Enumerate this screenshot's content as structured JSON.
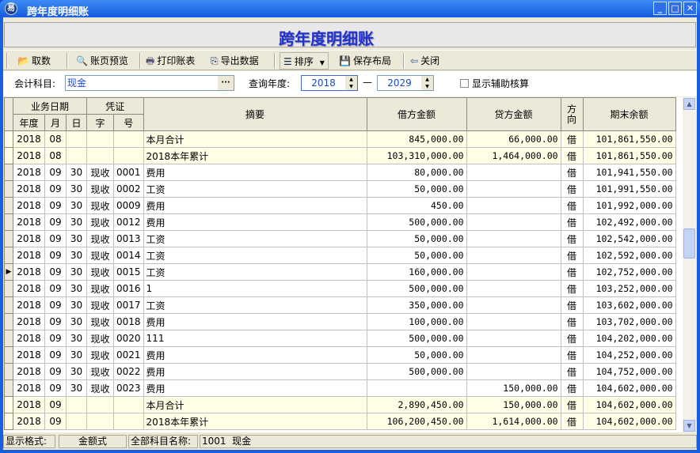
{
  "window": {
    "title": "跨年度明细账",
    "app_icon": "易",
    "minimize": "_",
    "maximize": "□",
    "close": "✕"
  },
  "banner": {
    "title": "跨年度明细账"
  },
  "toolbar": {
    "fetch": "取数",
    "preview": "账页预览",
    "print": "打印账表",
    "export": "导出数据",
    "sort": "排序",
    "save_layout": "保存布局",
    "close": "关闭"
  },
  "filter": {
    "account_label": "会计科目:",
    "account_value": "现金",
    "browse": "···",
    "year_label": "查询年度:",
    "year_from": "2018",
    "dash": "—",
    "year_to": "2029",
    "aux_label": "显示辅助核算",
    "aux_checked": false
  },
  "table": {
    "headers": {
      "date_group": "业务日期",
      "voucher_group": "凭证",
      "year": "年度",
      "month": "月",
      "day": "日",
      "type": "字",
      "no": "号",
      "summary": "摘要",
      "debit": "借方金额",
      "credit": "贷方金额",
      "direction": "方向",
      "balance": "期末余额"
    },
    "current_row": 8,
    "rows": [
      [
        "2018",
        "08",
        "",
        "",
        "",
        "本月合计",
        "845,000.00",
        "66,000.00",
        "借",
        "101,861,550.00",
        "sum"
      ],
      [
        "2018",
        "08",
        "",
        "",
        "",
        "2018本年累计",
        "103,310,000.00",
        "1,464,000.00",
        "借",
        "101,861,550.00",
        "sum"
      ],
      [
        "2018",
        "09",
        "30",
        "现收",
        "0001",
        "费用",
        "80,000.00",
        "",
        "借",
        "101,941,550.00",
        ""
      ],
      [
        "2018",
        "09",
        "30",
        "现收",
        "0002",
        "工资",
        "50,000.00",
        "",
        "借",
        "101,991,550.00",
        ""
      ],
      [
        "2018",
        "09",
        "30",
        "现收",
        "0009",
        "费用",
        "450.00",
        "",
        "借",
        "101,992,000.00",
        ""
      ],
      [
        "2018",
        "09",
        "30",
        "现收",
        "0012",
        "费用",
        "500,000.00",
        "",
        "借",
        "102,492,000.00",
        ""
      ],
      [
        "2018",
        "09",
        "30",
        "现收",
        "0013",
        "工资",
        "50,000.00",
        "",
        "借",
        "102,542,000.00",
        ""
      ],
      [
        "2018",
        "09",
        "30",
        "现收",
        "0014",
        "工资",
        "50,000.00",
        "",
        "借",
        "102,592,000.00",
        ""
      ],
      [
        "2018",
        "09",
        "30",
        "现收",
        "0015",
        "工资",
        "160,000.00",
        "",
        "借",
        "102,752,000.00",
        ""
      ],
      [
        "2018",
        "09",
        "30",
        "现收",
        "0016",
        "1",
        "500,000.00",
        "",
        "借",
        "103,252,000.00",
        ""
      ],
      [
        "2018",
        "09",
        "30",
        "现收",
        "0017",
        "工资",
        "350,000.00",
        "",
        "借",
        "103,602,000.00",
        ""
      ],
      [
        "2018",
        "09",
        "30",
        "现收",
        "0018",
        "费用",
        "100,000.00",
        "",
        "借",
        "103,702,000.00",
        ""
      ],
      [
        "2018",
        "09",
        "30",
        "现收",
        "0020",
        "111",
        "500,000.00",
        "",
        "借",
        "104,202,000.00",
        ""
      ],
      [
        "2018",
        "09",
        "30",
        "现收",
        "0021",
        "费用",
        "50,000.00",
        "",
        "借",
        "104,252,000.00",
        ""
      ],
      [
        "2018",
        "09",
        "30",
        "现收",
        "0022",
        "费用",
        "500,000.00",
        "",
        "借",
        "104,752,000.00",
        ""
      ],
      [
        "2018",
        "09",
        "30",
        "现收",
        "0023",
        "费用",
        "",
        "150,000.00",
        "借",
        "104,602,000.00",
        ""
      ],
      [
        "2018",
        "09",
        "",
        "",
        "",
        "本月合计",
        "2,890,450.00",
        "150,000.00",
        "借",
        "104,602,000.00",
        "sum"
      ],
      [
        "2018",
        "09",
        "",
        "",
        "",
        "2018本年累计",
        "106,200,450.00",
        "1,614,000.00",
        "借",
        "104,602,000.00",
        "sum"
      ]
    ]
  },
  "status": {
    "format_label": "显示格式:",
    "format_value": "金额式",
    "account_name_label": "全部科目名称:",
    "account_name_value": "1001  现金"
  }
}
